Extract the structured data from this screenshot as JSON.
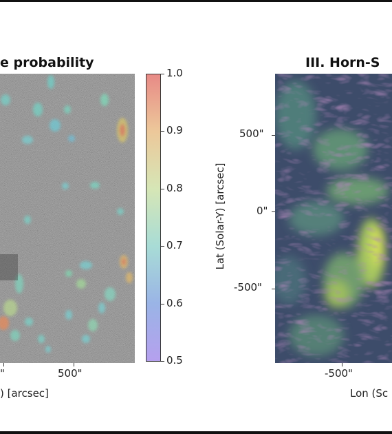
{
  "left_panel": {
    "title": "e probability",
    "x_tick": "500\"",
    "x_tick_left": "\"",
    "x_label": ") [arcsec]"
  },
  "colorbar": {
    "ticks": [
      "1.0",
      "0.9",
      "0.8",
      "0.7",
      "0.6",
      "0.5"
    ],
    "range": [
      0.5,
      1.0
    ],
    "colormap": "rainbow"
  },
  "right_panel": {
    "title": "III. Horn-S",
    "y_label": "Lat (Solar-Y) [arcsec]",
    "y_ticks": [
      "500\"",
      "0\"",
      "-500\""
    ],
    "x_tick": "-500\"",
    "x_label": "Lon (Sc"
  },
  "colors": {
    "frame": "#111111",
    "magnetogram_gray": "#8c8c8c",
    "map_base": "#3f4f6f",
    "map_highlight": "#cfe05a"
  }
}
